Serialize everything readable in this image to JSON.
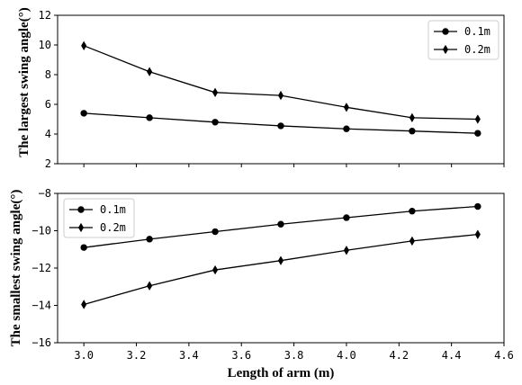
{
  "chart_data": [
    {
      "type": "line",
      "xlabel": "",
      "ylabel": "The largest swing angle(°)",
      "xlim": [
        2.9,
        4.6
      ],
      "ylim": [
        2,
        12
      ],
      "xticks": [
        3.0,
        3.2,
        3.4,
        3.6,
        3.8,
        4.0,
        4.2,
        4.4,
        4.6
      ],
      "yticks": [
        2,
        4,
        6,
        8,
        10,
        12
      ],
      "xtick_labels_visible": false,
      "legend_position": "top-right",
      "grid": false,
      "x": [
        3.0,
        3.25,
        3.5,
        3.75,
        4.0,
        4.25,
        4.5
      ],
      "series": [
        {
          "name": "0.1m",
          "marker": "circle",
          "color": "#000000",
          "values": [
            5.4,
            5.1,
            4.8,
            4.55,
            4.35,
            4.2,
            4.05
          ]
        },
        {
          "name": "0.2m",
          "marker": "thin-diamond",
          "color": "#000000",
          "values": [
            9.95,
            8.2,
            6.8,
            6.6,
            5.8,
            5.1,
            5.0
          ]
        }
      ]
    },
    {
      "type": "line",
      "xlabel": "Length of arm (m)",
      "ylabel": "The smallest swing angle(°)",
      "xlim": [
        2.9,
        4.6
      ],
      "ylim": [
        -16,
        -8
      ],
      "xticks": [
        3.0,
        3.2,
        3.4,
        3.6,
        3.8,
        4.0,
        4.2,
        4.4,
        4.6
      ],
      "yticks": [
        -16,
        -14,
        -12,
        -10,
        -8
      ],
      "xtick_labels": [
        "3.0",
        "3.2",
        "3.4",
        "3.6",
        "3.8",
        "4.0",
        "4.2",
        "4.4",
        "4.6"
      ],
      "ytick_labels": [
        "−16",
        "−14",
        "−12",
        "−10",
        "−8"
      ],
      "xtick_labels_visible": true,
      "legend_position": "top-left",
      "grid": false,
      "x": [
        3.0,
        3.25,
        3.5,
        3.75,
        4.0,
        4.25,
        4.5
      ],
      "series": [
        {
          "name": "0.1m",
          "marker": "circle",
          "color": "#000000",
          "values": [
            -10.9,
            -10.45,
            -10.05,
            -9.65,
            -9.3,
            -8.95,
            -8.7
          ]
        },
        {
          "name": "0.2m",
          "marker": "thin-diamond",
          "color": "#000000",
          "values": [
            -13.95,
            -12.95,
            -12.1,
            -11.6,
            -11.05,
            -10.55,
            -10.2
          ]
        }
      ]
    }
  ]
}
